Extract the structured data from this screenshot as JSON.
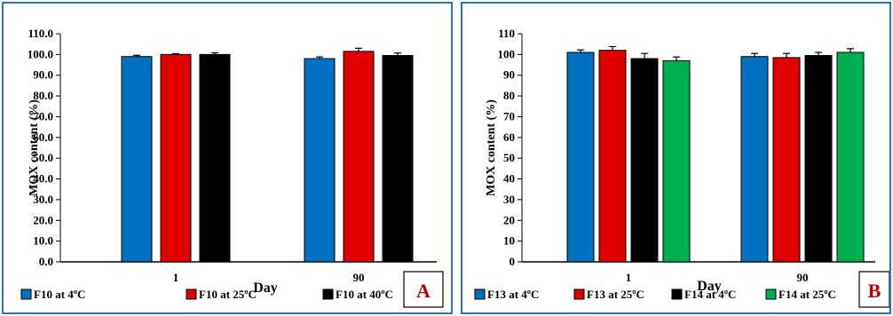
{
  "chart_data": [
    {
      "panel": "A",
      "type": "bar",
      "categories": [
        "1",
        "90"
      ],
      "series": [
        {
          "name": "F10 at 4ºC",
          "color": "#0070c0",
          "values": [
            99.0,
            98.0
          ],
          "errors": [
            0.6,
            0.8
          ]
        },
        {
          "name": "F10 at 25ºC",
          "color": "#e00000",
          "values": [
            100.0,
            101.5
          ],
          "errors": [
            0.4,
            1.5
          ]
        },
        {
          "name": "F10 at 40ºC",
          "color": "#000000",
          "values": [
            100.0,
            99.5
          ],
          "errors": [
            0.8,
            1.2
          ]
        }
      ],
      "ylabel": "MOX content (%)",
      "xlabel": "Day",
      "ylim": [
        0,
        110
      ],
      "ytick_step": 10,
      "ytick_labels": [
        "0.0",
        "10.0",
        "20.0",
        "30.0",
        "40.0",
        "50.0",
        "60.0",
        "70.0",
        "80.0",
        "90.0",
        "100.0",
        "110.0"
      ],
      "legend": "bottom",
      "grid": false
    },
    {
      "panel": "B",
      "type": "bar",
      "categories": [
        "1",
        "90"
      ],
      "series": [
        {
          "name": "F13 at 4ºC",
          "color": "#0070c0",
          "values": [
            101.0,
            99.0
          ],
          "errors": [
            1.2,
            1.5
          ]
        },
        {
          "name": "F13 at 25ºC",
          "color": "#e00000",
          "values": [
            102.0,
            98.5
          ],
          "errors": [
            1.8,
            2.0
          ]
        },
        {
          "name": "F14 at 4ºC",
          "color": "#000000",
          "values": [
            98.0,
            99.5
          ],
          "errors": [
            2.5,
            1.5
          ]
        },
        {
          "name": "F14 at 25ºC",
          "color": "#00b050",
          "values": [
            97.0,
            101.0
          ],
          "errors": [
            1.8,
            1.8
          ]
        }
      ],
      "ylabel": "MOX content (%)",
      "xlabel": "Day",
      "ylim": [
        0,
        110
      ],
      "ytick_step": 10,
      "ytick_labels": [
        "0",
        "10",
        "20",
        "30",
        "40",
        "50",
        "60",
        "70",
        "80",
        "90",
        "100",
        "110"
      ],
      "legend": "bottom",
      "grid": false
    }
  ],
  "panel_labels": {
    "A": "A",
    "B": "B"
  },
  "colors": {
    "border": "#2e75b6",
    "panel_label": "#c00000"
  }
}
